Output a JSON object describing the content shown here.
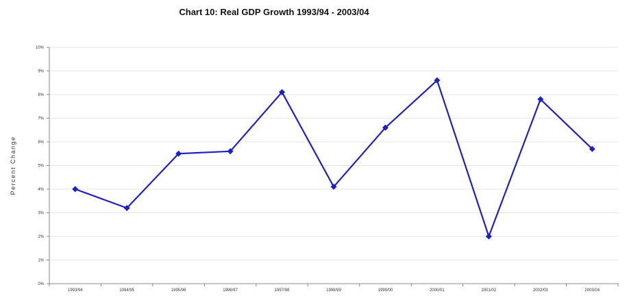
{
  "chart_data": {
    "type": "line",
    "title": "Chart 10: Real GDP Growth 1993/94 - 2003/04",
    "xlabel": "",
    "ylabel": "Percent Change",
    "categories": [
      "1993/94",
      "1994/95",
      "1995/96",
      "1996/97",
      "1997/98",
      "1998/99",
      "1999/00",
      "2000/01",
      "2001/02",
      "2002/03",
      "2003/04"
    ],
    "series": [
      {
        "values": [
          4.0,
          3.2,
          5.5,
          5.6,
          8.1,
          4.1,
          6.6,
          8.6,
          2.0,
          7.8,
          5.7
        ],
        "color": "#1f1fc8"
      }
    ],
    "ylim": [
      0,
      10
    ],
    "yticks": [
      {
        "value": 0,
        "label": "0%"
      },
      {
        "value": 1,
        "label": "1%"
      },
      {
        "value": 2,
        "label": "2%"
      },
      {
        "value": 3,
        "label": "3%"
      },
      {
        "value": 4,
        "label": "4%"
      },
      {
        "value": 5,
        "label": "5%"
      },
      {
        "value": 6,
        "label": "6%"
      },
      {
        "value": 7,
        "label": "7%"
      },
      {
        "value": 8,
        "label": "8%"
      },
      {
        "value": 9,
        "label": "9%"
      },
      {
        "value": 10,
        "label": "10%"
      }
    ],
    "grid": true,
    "legend": "none"
  }
}
